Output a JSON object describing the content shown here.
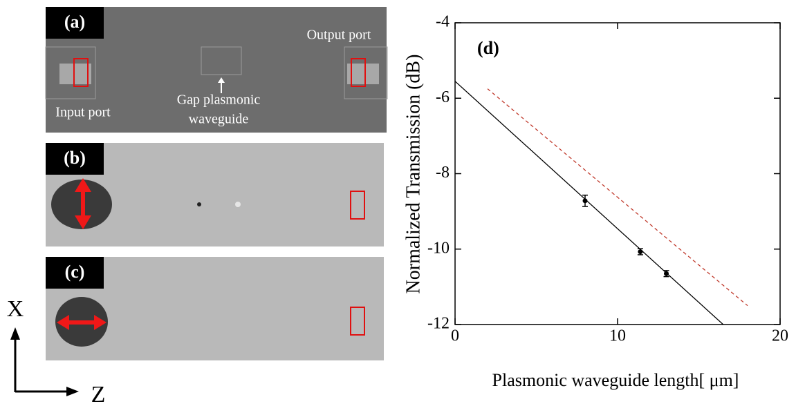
{
  "panels": [
    {
      "label": "(a)",
      "annotations": [
        "Input port",
        "Gap plasmonic",
        "waveguide",
        "Output port"
      ]
    },
    {
      "label": "(b)"
    },
    {
      "label": "(c)"
    }
  ],
  "axes_labels": [
    "X",
    "Z"
  ],
  "chart_data": {
    "type": "scatter",
    "annotation": "(d)",
    "xlabel": "Plasmonic waveguide length[ μm]",
    "ylabel": "Normalized Transmission (dB)",
    "xlim": [
      0,
      20
    ],
    "xticks": [
      0,
      10,
      20
    ],
    "ylim": [
      -12,
      -4
    ],
    "yticks": [
      -4,
      -6,
      -8,
      -10,
      -12
    ],
    "series": [
      {
        "x": [
          8,
          11.4,
          13
        ],
        "values": [
          -8.72,
          -10.07,
          -10.65
        ],
        "errors": [
          0.15,
          0.08,
          0.08
        ],
        "color": "#000000",
        "style": "points"
      },
      {
        "x": [
          0,
          16.5
        ],
        "values": [
          -5.55,
          -12
        ],
        "color": "#000000",
        "style": "solid"
      },
      {
        "x": [
          2,
          18
        ],
        "values": [
          -5.75,
          -11.5
        ],
        "color": "#c0392b",
        "style": "dashed"
      }
    ]
  }
}
